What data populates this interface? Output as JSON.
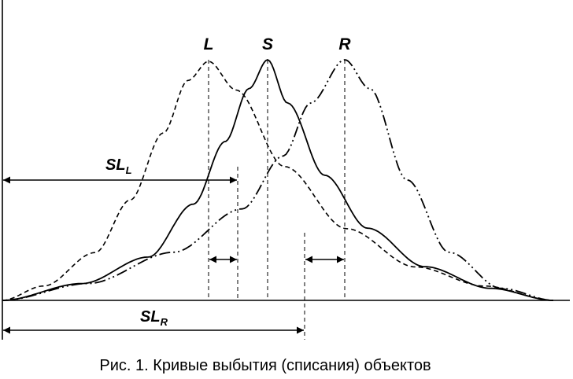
{
  "curves": [
    {
      "id": "L",
      "label": "L",
      "line_style": "dashed"
    },
    {
      "id": "S",
      "label": "S",
      "line_style": "solid"
    },
    {
      "id": "R",
      "label": "R",
      "line_style": "dash-dot-dot"
    }
  ],
  "spans": {
    "left": {
      "label": "SL",
      "subscript": "L"
    },
    "right": {
      "label": "SL",
      "subscript": "R"
    }
  },
  "caption": "Рис. 1. Кривые выбытия (списания) объектов",
  "colors": {
    "ink": "#000000",
    "background": "#ffffff"
  }
}
